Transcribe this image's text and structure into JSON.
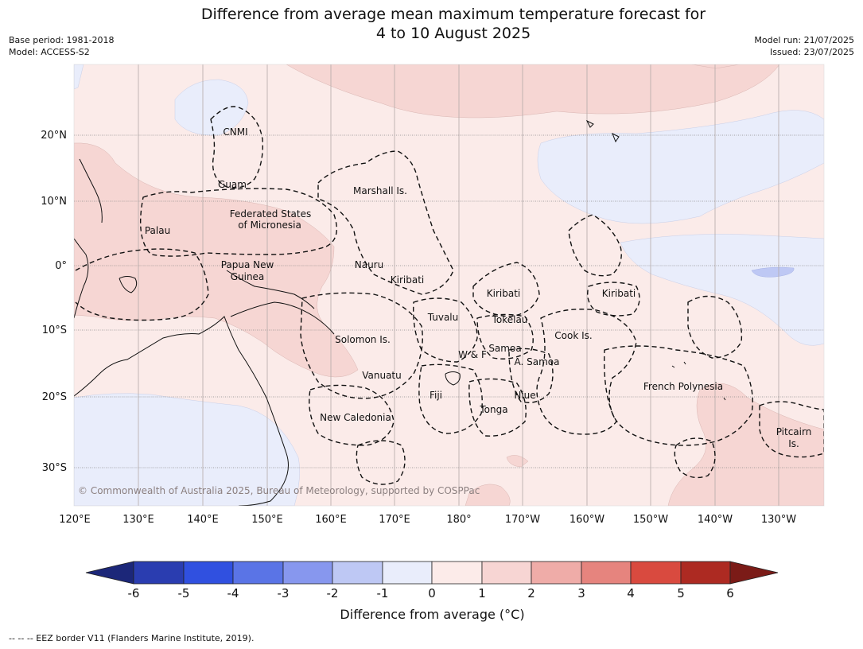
{
  "header": {
    "title_line1": "Difference from average mean maximum temperature forecast for",
    "title_line2": "4 to 10 August 2025",
    "base_period": "Base period: 1981-2018",
    "model": "Model: ACCESS-S2",
    "model_run": "Model run: 21/07/2025",
    "issued": "Issued: 23/07/2025"
  },
  "map": {
    "longitude_labels": [
      "120°E",
      "130°E",
      "140°E",
      "150°E",
      "160°E",
      "170°E",
      "180°",
      "170°W",
      "160°W",
      "150°W",
      "140°W",
      "130°W"
    ],
    "latitude_labels": [
      "20°N",
      "10°N",
      "0°",
      "10°S",
      "20°S",
      "30°S"
    ],
    "places": [
      {
        "label": "CNMI"
      },
      {
        "label": "Guam"
      },
      {
        "label": "Marshall Is."
      },
      {
        "label": "Federated States"
      },
      {
        "label": "of Micronesia"
      },
      {
        "label": "Palau"
      },
      {
        "label": "Papua New"
      },
      {
        "label": "Guinea"
      },
      {
        "label": "Nauru"
      },
      {
        "label": "Kiribati"
      },
      {
        "label": "Kiribati"
      },
      {
        "label": "Kiribati"
      },
      {
        "label": "Tuvalu"
      },
      {
        "label": "Tokelau"
      },
      {
        "label": "Solomon Is."
      },
      {
        "label": "Samoa"
      },
      {
        "label": "W & F"
      },
      {
        "label": "A. Samoa"
      },
      {
        "label": "Cook Is."
      },
      {
        "label": "Vanuatu"
      },
      {
        "label": "Fiji"
      },
      {
        "label": "Niue"
      },
      {
        "label": "French Polynesia"
      },
      {
        "label": "Tonga"
      },
      {
        "label": "New Caledonia"
      },
      {
        "label": "Pitcairn"
      },
      {
        "label": "Is."
      }
    ],
    "copyright": "© Commonwealth of Australia 2025, Bureau of Meteorology, supported by COSPPac"
  },
  "colorbar": {
    "ticks": [
      "-6",
      "-5",
      "-4",
      "-3",
      "-2",
      "-1",
      "0",
      "1",
      "2",
      "3",
      "4",
      "5",
      "6"
    ],
    "colors": [
      "#1c2779",
      "#2a3db0",
      "#3050e0",
      "#5a74e6",
      "#8797ee",
      "#bec8f4",
      "#e9edfb",
      "#fcebe9",
      "#f7d5d3",
      "#efaca8",
      "#e6847e",
      "#d94a3f",
      "#ad2a22",
      "#7b1b17"
    ],
    "title": "Difference from average (°C)"
  },
  "footnote": "--  --  -- EEZ border V11 (Flanders Marine Institute, 2019)."
}
